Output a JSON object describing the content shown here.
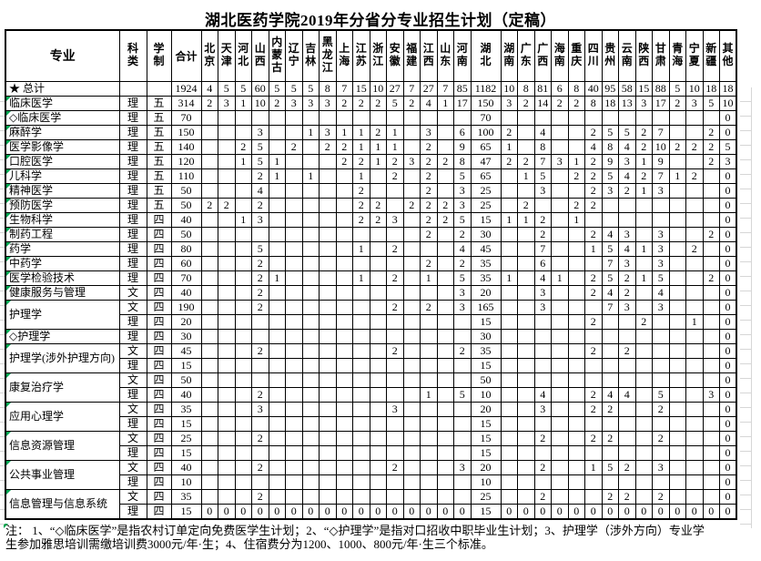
{
  "title": "湖北医药学院2019年分省分专业招生计划（定稿）",
  "marker_color": "#00a651",
  "table": {
    "corner_headers": [
      "专业",
      "科类",
      "学制",
      "合计"
    ],
    "wide_column": "湖北",
    "province_columns": [
      "北京",
      "天津",
      "河北",
      "山西",
      "内蒙古",
      "辽宁",
      "吉林",
      "黑龙江",
      "上海",
      "江苏",
      "浙江",
      "安徽",
      "福建",
      "江西",
      "山东",
      "河南",
      "湖北",
      "湖南",
      "广东",
      "广西",
      "海南",
      "重庆",
      "四川",
      "贵州",
      "云南",
      "陕西",
      "甘肃",
      "青海",
      "宁夏",
      "新疆",
      "其他"
    ],
    "value_columns": [
      "合计",
      "北京",
      "天津",
      "河北",
      "山西",
      "内蒙古",
      "辽宁",
      "吉林",
      "黑龙江",
      "上海",
      "江苏",
      "浙江",
      "安徽",
      "福建",
      "江西",
      "山东",
      "河南",
      "湖北",
      "湖南",
      "广东",
      "广西",
      "海南",
      "重庆",
      "四川",
      "贵州",
      "云南",
      "陕西",
      "甘肃",
      "青海",
      "宁夏",
      "新疆",
      "其他"
    ],
    "rows": [
      {
        "major": "★ 总计",
        "gt": false,
        "cat": "",
        "years": "",
        "v": [
          "1924",
          "4",
          "5",
          "5",
          "60",
          "5",
          "5",
          "5",
          "8",
          "7",
          "15",
          "10",
          "27",
          "7",
          "27",
          "7",
          "85",
          "1182",
          "10",
          "8",
          "81",
          "6",
          "8",
          "40",
          "95",
          "58",
          "15",
          "88",
          "5",
          "10",
          "18",
          "18"
        ]
      },
      {
        "major": "临床医学",
        "cat": "理",
        "years": "五",
        "v": [
          "314",
          "2",
          "3",
          "1",
          "10",
          "2",
          "3",
          "3",
          "3",
          "2",
          "2",
          "2",
          "5",
          "2",
          "4",
          "1",
          "17",
          "150",
          "3",
          "2",
          "14",
          "2",
          "2",
          "8",
          "18",
          "13",
          "3",
          "17",
          "2",
          "3",
          "5",
          "10"
        ]
      },
      {
        "major": "◇临床医学",
        "cat": "理",
        "years": "五",
        "v": [
          "70",
          "",
          "",
          "",
          "",
          "",
          "",
          "",
          "",
          "",
          "",
          "",
          "",
          "",
          "",
          "",
          "",
          "70",
          "",
          "",
          "",
          "",
          "",
          "",
          "",
          "",
          "",
          "",
          "",
          "",
          "",
          "0"
        ]
      },
      {
        "major": "麻醉学",
        "cat": "理",
        "years": "五",
        "v": [
          "150",
          "",
          "",
          "",
          "3",
          "",
          "",
          "1",
          "3",
          "1",
          "1",
          "2",
          "1",
          "",
          "3",
          "",
          "6",
          "100",
          "2",
          "",
          "4",
          "",
          "",
          "2",
          "5",
          "5",
          "2",
          "7",
          "",
          "",
          "2",
          "0"
        ]
      },
      {
        "major": "医学影像学",
        "cat": "理",
        "years": "五",
        "v": [
          "140",
          "",
          "",
          "2",
          "5",
          "",
          "2",
          "",
          "2",
          "2",
          "1",
          "1",
          "1",
          "",
          "2",
          "",
          "9",
          "65",
          "1",
          "",
          "8",
          "",
          "",
          "4",
          "8",
          "4",
          "2",
          "10",
          "2",
          "2",
          "2",
          "5"
        ]
      },
      {
        "major": "口腔医学",
        "cat": "理",
        "years": "五",
        "v": [
          "120",
          "",
          "",
          "1",
          "5",
          "1",
          "",
          "",
          "",
          "2",
          "2",
          "1",
          "2",
          "3",
          "2",
          "2",
          "8",
          "47",
          "2",
          "2",
          "7",
          "3",
          "1",
          "2",
          "9",
          "3",
          "1",
          "9",
          "",
          "",
          "2",
          "3"
        ]
      },
      {
        "major": "儿科学",
        "cat": "理",
        "years": "五",
        "v": [
          "110",
          "",
          "",
          "",
          "2",
          "1",
          "",
          "1",
          "",
          "",
          "1",
          "",
          "2",
          "",
          "2",
          "",
          "5",
          "65",
          "",
          "1",
          "5",
          "",
          "2",
          "2",
          "5",
          "4",
          "2",
          "7",
          "1",
          "2",
          "",
          "0"
        ]
      },
      {
        "major": "精神医学",
        "cat": "理",
        "years": "五",
        "v": [
          "50",
          "",
          "",
          "",
          "4",
          "",
          "",
          "",
          "",
          "",
          "2",
          "",
          "",
          "",
          "2",
          "",
          "3",
          "25",
          "",
          "",
          "3",
          "",
          "",
          "2",
          "3",
          "2",
          "1",
          "3",
          "",
          "",
          "",
          "0"
        ]
      },
      {
        "major": "预防医学",
        "cat": "理",
        "years": "五",
        "v": [
          "50",
          "2",
          "2",
          "",
          "2",
          "",
          "",
          "",
          "",
          "",
          "2",
          "2",
          "",
          "2",
          "2",
          "2",
          "3",
          "25",
          "",
          "2",
          "",
          "",
          "2",
          "2",
          "",
          "",
          "",
          "",
          "",
          "",
          "",
          "0"
        ]
      },
      {
        "major": "生物科学",
        "cat": "理",
        "years": "四",
        "v": [
          "40",
          "",
          "",
          "1",
          "3",
          "",
          "",
          "",
          "",
          "",
          "2",
          "2",
          "3",
          "",
          "2",
          "2",
          "5",
          "15",
          "1",
          "1",
          "2",
          "",
          "1",
          "",
          "",
          "",
          "",
          "",
          "",
          "",
          "",
          "0"
        ]
      },
      {
        "major": "制药工程",
        "cat": "理",
        "years": "四",
        "v": [
          "50",
          "",
          "",
          "",
          "",
          "",
          "",
          "",
          "",
          "",
          "",
          "",
          "",
          "",
          "2",
          "",
          "2",
          "30",
          "",
          "",
          "2",
          "",
          "",
          "2",
          "4",
          "3",
          "",
          "3",
          "",
          "",
          "2",
          "0"
        ]
      },
      {
        "major": "药学",
        "cat": "理",
        "years": "四",
        "v": [
          "80",
          "",
          "",
          "",
          "5",
          "",
          "",
          "",
          "",
          "",
          "1",
          "",
          "2",
          "",
          "",
          "",
          "4",
          "45",
          "",
          "",
          "7",
          "",
          "",
          "1",
          "5",
          "4",
          "1",
          "3",
          "",
          "2",
          "",
          "0"
        ]
      },
      {
        "major": "中药学",
        "cat": "理",
        "years": "四",
        "v": [
          "60",
          "",
          "",
          "",
          "2",
          "",
          "",
          "",
          "",
          "",
          "",
          "",
          "",
          "",
          "2",
          "",
          "2",
          "35",
          "",
          "",
          "6",
          "",
          "",
          "",
          "7",
          "3",
          "",
          "3",
          "",
          "",
          "",
          "0"
        ]
      },
      {
        "major": "医学检验技术",
        "cat": "理",
        "years": "四",
        "v": [
          "70",
          "",
          "",
          "",
          "2",
          "1",
          "",
          "",
          "",
          "",
          "1",
          "",
          "2",
          "",
          "1",
          "",
          "5",
          "35",
          "1",
          "",
          "4",
          "1",
          "",
          "2",
          "5",
          "2",
          "1",
          "5",
          "",
          "",
          "2",
          "0"
        ]
      },
      {
        "major": "健康服务与管理",
        "cat": "文",
        "years": "四",
        "v": [
          "40",
          "",
          "",
          "",
          "2",
          "",
          "",
          "",
          "",
          "",
          "",
          "",
          "",
          "",
          "",
          "",
          "3",
          "20",
          "",
          "",
          "3",
          "",
          "",
          "2",
          "4",
          "2",
          "",
          "4",
          "",
          "",
          "",
          "0"
        ]
      },
      {
        "major": "护理学",
        "span": 2,
        "cat": "文",
        "years": "四",
        "v": [
          "190",
          "",
          "",
          "",
          "2",
          "",
          "",
          "",
          "",
          "",
          "",
          "",
          "2",
          "",
          "2",
          "",
          "3",
          "165",
          "",
          "",
          "3",
          "",
          "",
          "",
          "7",
          "3",
          "",
          "3",
          "",
          "",
          "",
          "0"
        ]
      },
      {
        "cat": "理",
        "years": "四",
        "v": [
          "20",
          "",
          "",
          "",
          "",
          "",
          "",
          "",
          "",
          "",
          "",
          "",
          "",
          "",
          "",
          "",
          "",
          "15",
          "",
          "",
          "",
          "",
          "",
          "2",
          "",
          "",
          "2",
          "",
          "",
          "1",
          "",
          "0"
        ]
      },
      {
        "major": "◇护理学",
        "cat": "理",
        "years": "四",
        "v": [
          "30",
          "",
          "",
          "",
          "",
          "",
          "",
          "",
          "",
          "",
          "",
          "",
          "",
          "",
          "",
          "",
          "",
          "30",
          "",
          "",
          "",
          "",
          "",
          "",
          "",
          "",
          "",
          "",
          "",
          "",
          "",
          "0"
        ]
      },
      {
        "major": "护理学(涉外护理方向)",
        "span": 2,
        "cat": "文",
        "years": "四",
        "v": [
          "45",
          "",
          "",
          "",
          "2",
          "",
          "",
          "",
          "",
          "",
          "",
          "",
          "2",
          "",
          "",
          "",
          "2",
          "35",
          "",
          "",
          "",
          "",
          "",
          "2",
          "",
          "2",
          "",
          "",
          "",
          "",
          "",
          "0"
        ]
      },
      {
        "cat": "理",
        "years": "四",
        "v": [
          "15",
          "",
          "",
          "",
          "",
          "",
          "",
          "",
          "",
          "",
          "",
          "",
          "",
          "",
          "",
          "",
          "",
          "15",
          "",
          "",
          "",
          "",
          "",
          "",
          "",
          "",
          "",
          "",
          "",
          "",
          "",
          "0"
        ]
      },
      {
        "major": "康复治疗学",
        "span": 2,
        "cat": "文",
        "years": "四",
        "v": [
          "50",
          "",
          "",
          "",
          "",
          "",
          "",
          "",
          "",
          "",
          "",
          "",
          "",
          "",
          "",
          "",
          "",
          "50",
          "",
          "",
          "",
          "",
          "",
          "",
          "",
          "",
          "",
          "",
          "",
          "",
          "",
          "0"
        ]
      },
      {
        "cat": "理",
        "years": "四",
        "v": [
          "40",
          "",
          "",
          "",
          "2",
          "",
          "",
          "",
          "",
          "",
          "",
          "",
          "",
          "",
          "1",
          "",
          "5",
          "10",
          "",
          "",
          "4",
          "",
          "",
          "2",
          "4",
          "4",
          "",
          "5",
          "",
          "",
          "3",
          "0"
        ]
      },
      {
        "major": "应用心理学",
        "span": 2,
        "cat": "文",
        "years": "四",
        "v": [
          "35",
          "",
          "",
          "",
          "3",
          "",
          "",
          "",
          "",
          "",
          "",
          "",
          "3",
          "",
          "",
          "",
          "",
          "20",
          "",
          "",
          "3",
          "",
          "",
          "2",
          "2",
          "",
          "",
          "2",
          "",
          "",
          "",
          "0"
        ]
      },
      {
        "cat": "理",
        "years": "四",
        "v": [
          "15",
          "",
          "",
          "",
          "",
          "",
          "",
          "",
          "",
          "",
          "",
          "",
          "",
          "",
          "",
          "",
          "",
          "15",
          "",
          "",
          "",
          "",
          "",
          "",
          "",
          "",
          "",
          "",
          "",
          "",
          "",
          "0"
        ]
      },
      {
        "major": "信息资源管理",
        "span": 2,
        "cat": "文",
        "years": "四",
        "v": [
          "25",
          "",
          "",
          "",
          "2",
          "",
          "",
          "",
          "",
          "",
          "",
          "",
          "",
          "",
          "",
          "",
          "",
          "15",
          "",
          "",
          "2",
          "",
          "",
          "2",
          "2",
          "",
          "",
          "2",
          "",
          "",
          "",
          "0"
        ]
      },
      {
        "cat": "理",
        "years": "四",
        "v": [
          "15",
          "",
          "",
          "",
          "",
          "",
          "",
          "",
          "",
          "",
          "",
          "",
          "",
          "",
          "",
          "",
          "",
          "15",
          "",
          "",
          "",
          "",
          "",
          "",
          "",
          "",
          "",
          "",
          "",
          "",
          "",
          "0"
        ]
      },
      {
        "major": "公共事业管理",
        "span": 2,
        "cat": "文",
        "years": "四",
        "v": [
          "40",
          "",
          "",
          "",
          "2",
          "",
          "",
          "",
          "",
          "",
          "",
          "",
          "2",
          "",
          "",
          "",
          "3",
          "20",
          "",
          "",
          "2",
          "",
          "",
          "1",
          "5",
          "2",
          "",
          "3",
          "",
          "",
          "",
          "0"
        ]
      },
      {
        "cat": "理",
        "years": "四",
        "v": [
          "10",
          "",
          "",
          "",
          "",
          "",
          "",
          "",
          "",
          "",
          "",
          "",
          "",
          "",
          "",
          "",
          "",
          "10",
          "",
          "",
          "",
          "",
          "",
          "",
          "",
          "",
          "",
          "",
          "",
          "",
          "",
          "0"
        ]
      },
      {
        "major": "信息管理与信息系统",
        "span": 2,
        "cat": "文",
        "years": "四",
        "v": [
          "35",
          "",
          "",
          "",
          "2",
          "",
          "",
          "",
          "",
          "",
          "",
          "",
          "",
          "",
          "",
          "",
          "",
          "25",
          "",
          "",
          "2",
          "",
          "",
          "",
          "2",
          "2",
          "",
          "2",
          "",
          "",
          "",
          "0"
        ]
      },
      {
        "cat": "理",
        "years": "四",
        "v": [
          "15",
          "0",
          "0",
          "0",
          "0",
          "0",
          "0",
          "0",
          "0",
          "0",
          "0",
          "0",
          "0",
          "0",
          "0",
          "0",
          "0",
          "15",
          "0",
          "0",
          "0",
          "0",
          "0",
          "0",
          "0",
          "0",
          "0",
          "0",
          "0",
          "0",
          "0",
          "0"
        ]
      }
    ]
  },
  "note_lines": [
    "注：  1、“◇临床医学”是指农村订单定向免费医学生计划；2、“◇护理学”是指对口招收中职毕业生计划；3、护理学（涉外方向）专业学",
    "生参加雅思培训需缴培训费3000元/年·生；4、住宿费分为1200、1000、800元/年·生三个标准。"
  ]
}
